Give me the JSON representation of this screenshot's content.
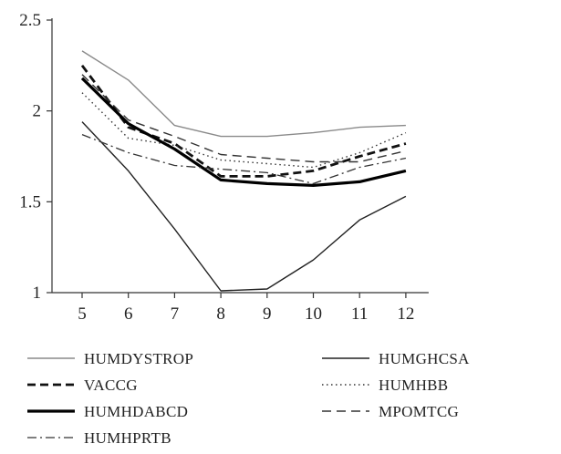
{
  "chart_data": {
    "type": "line",
    "x": [
      5,
      6,
      7,
      8,
      9,
      10,
      11,
      12
    ],
    "y_ticks": [
      "1",
      "1.5",
      "2",
      "2.5"
    ],
    "x_ticks": [
      "5",
      "6",
      "7",
      "8",
      "9",
      "10",
      "11",
      "12"
    ],
    "ylim": [
      1,
      2.5
    ],
    "xlim": [
      5,
      12
    ],
    "grid": false,
    "legend_position": "bottom",
    "series": [
      {
        "name": "HUMDYSTROP",
        "color": "#8a8a8a",
        "style": "solid-thin",
        "values": [
          2.33,
          2.17,
          1.92,
          1.86,
          1.86,
          1.88,
          1.91,
          1.92
        ]
      },
      {
        "name": "HUMGHCSA",
        "color": "#222222",
        "style": "solid-thin",
        "values": [
          1.94,
          1.67,
          1.35,
          1.01,
          1.02,
          1.18,
          1.4,
          1.53
        ]
      },
      {
        "name": "VACCG",
        "color": "#111111",
        "style": "dashed-thick",
        "values": [
          2.25,
          1.91,
          1.82,
          1.64,
          1.64,
          1.67,
          1.75,
          1.82
        ]
      },
      {
        "name": "HUMHBB",
        "color": "#333333",
        "style": "dotted",
        "values": [
          2.1,
          1.85,
          1.81,
          1.73,
          1.71,
          1.69,
          1.77,
          1.88
        ]
      },
      {
        "name": "HUMHDABCD",
        "color": "#000000",
        "style": "solid-thick",
        "values": [
          2.18,
          1.93,
          1.79,
          1.62,
          1.6,
          1.59,
          1.61,
          1.67
        ]
      },
      {
        "name": "MPOMTCG",
        "color": "#333333",
        "style": "dashed-thin",
        "values": [
          2.2,
          1.95,
          1.86,
          1.76,
          1.74,
          1.72,
          1.72,
          1.78
        ]
      },
      {
        "name": "HUMHPRTB",
        "color": "#333333",
        "style": "dashdot",
        "values": [
          1.87,
          1.77,
          1.7,
          1.68,
          1.66,
          1.6,
          1.69,
          1.74
        ]
      }
    ]
  }
}
